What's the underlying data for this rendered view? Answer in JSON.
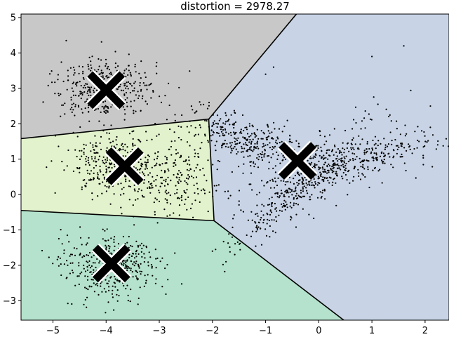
{
  "chart_data": {
    "type": "scatter",
    "title": "distortion = 2978.27",
    "xlabel": "",
    "ylabel": "",
    "xlim": [
      -5.6,
      2.45
    ],
    "ylim": [
      -3.55,
      5.1
    ],
    "xticks": [
      -5,
      -4,
      -3,
      -2,
      -1,
      0,
      1,
      2
    ],
    "yticks": [
      -3,
      -2,
      -1,
      0,
      1,
      2,
      3,
      4,
      5
    ],
    "grid": false,
    "legend": "none",
    "regions": [
      {
        "color": "#c8c8c8",
        "polygon": [
          [
            -5.6,
            1.58
          ],
          [
            -2.07,
            2.13
          ],
          [
            -0.42,
            5.1
          ],
          [
            -5.6,
            5.1
          ]
        ]
      },
      {
        "color": "#e2f2cc",
        "polygon": [
          [
            -5.6,
            1.58
          ],
          [
            -2.07,
            2.13
          ],
          [
            -1.97,
            -0.74
          ],
          [
            -5.6,
            -0.45
          ]
        ]
      },
      {
        "color": "#c8d4e6",
        "polygon": [
          [
            -2.07,
            2.13
          ],
          [
            -0.42,
            5.1
          ],
          [
            2.45,
            5.1
          ],
          [
            2.45,
            -3.55
          ],
          [
            0.47,
            -3.55
          ],
          [
            -1.97,
            -0.74
          ]
        ]
      },
      {
        "color": "#b4e2cc",
        "polygon": [
          [
            -5.6,
            -0.45
          ],
          [
            -1.97,
            -0.74
          ],
          [
            0.47,
            -3.55
          ],
          [
            -5.6,
            -3.55
          ]
        ]
      }
    ],
    "boundaries": [
      [
        [
          -5.6,
          1.58
        ],
        [
          -2.07,
          2.13
        ]
      ],
      [
        [
          -2.07,
          2.13
        ],
        [
          -0.42,
          5.1
        ]
      ],
      [
        [
          -2.07,
          2.13
        ],
        [
          -1.97,
          -0.74
        ]
      ],
      [
        [
          -5.6,
          -0.45
        ],
        [
          -1.97,
          -0.74
        ]
      ],
      [
        [
          -1.97,
          -0.74
        ],
        [
          0.47,
          -3.55
        ]
      ]
    ],
    "centroids": [
      {
        "x": -4.0,
        "y": 2.95
      },
      {
        "x": -3.65,
        "y": 0.8
      },
      {
        "x": -0.4,
        "y": 0.95
      },
      {
        "x": -3.9,
        "y": -1.95
      }
    ],
    "clusters": [
      {
        "cx": -4.0,
        "cy": 3.0,
        "sx": 0.45,
        "sy": 0.45,
        "angle": 0,
        "n": 400
      },
      {
        "cx": -3.9,
        "cy": 0.85,
        "sx": 0.45,
        "sy": 0.45,
        "angle": 0,
        "n": 330
      },
      {
        "cx": -2.7,
        "cy": 0.5,
        "sx": 0.45,
        "sy": 0.55,
        "angle": 0,
        "n": 220
      },
      {
        "cx": -3.9,
        "cy": -2.0,
        "sx": 0.45,
        "sy": 0.45,
        "angle": 0,
        "n": 400
      },
      {
        "cx": -1.3,
        "cy": 1.5,
        "sx": 0.7,
        "sy": 0.3,
        "angle": -0.55,
        "n": 350
      },
      {
        "cx": -0.4,
        "cy": 0.2,
        "sx": 1.1,
        "sy": 0.25,
        "angle": 0.95,
        "n": 400
      },
      {
        "cx": 0.9,
        "cy": 1.0,
        "sx": 0.9,
        "sy": 0.3,
        "angle": 0.45,
        "n": 300
      }
    ],
    "outliers": [
      [
        1.6,
        4.2
      ],
      [
        -4.75,
        4.35
      ],
      [
        -1.0,
        3.4
      ],
      [
        -2.0,
        -1.6
      ],
      [
        -3.4,
        -3.1
      ],
      [
        -0.85,
        3.6
      ],
      [
        1.0,
        3.9
      ],
      [
        2.1,
        2.5
      ]
    ]
  }
}
